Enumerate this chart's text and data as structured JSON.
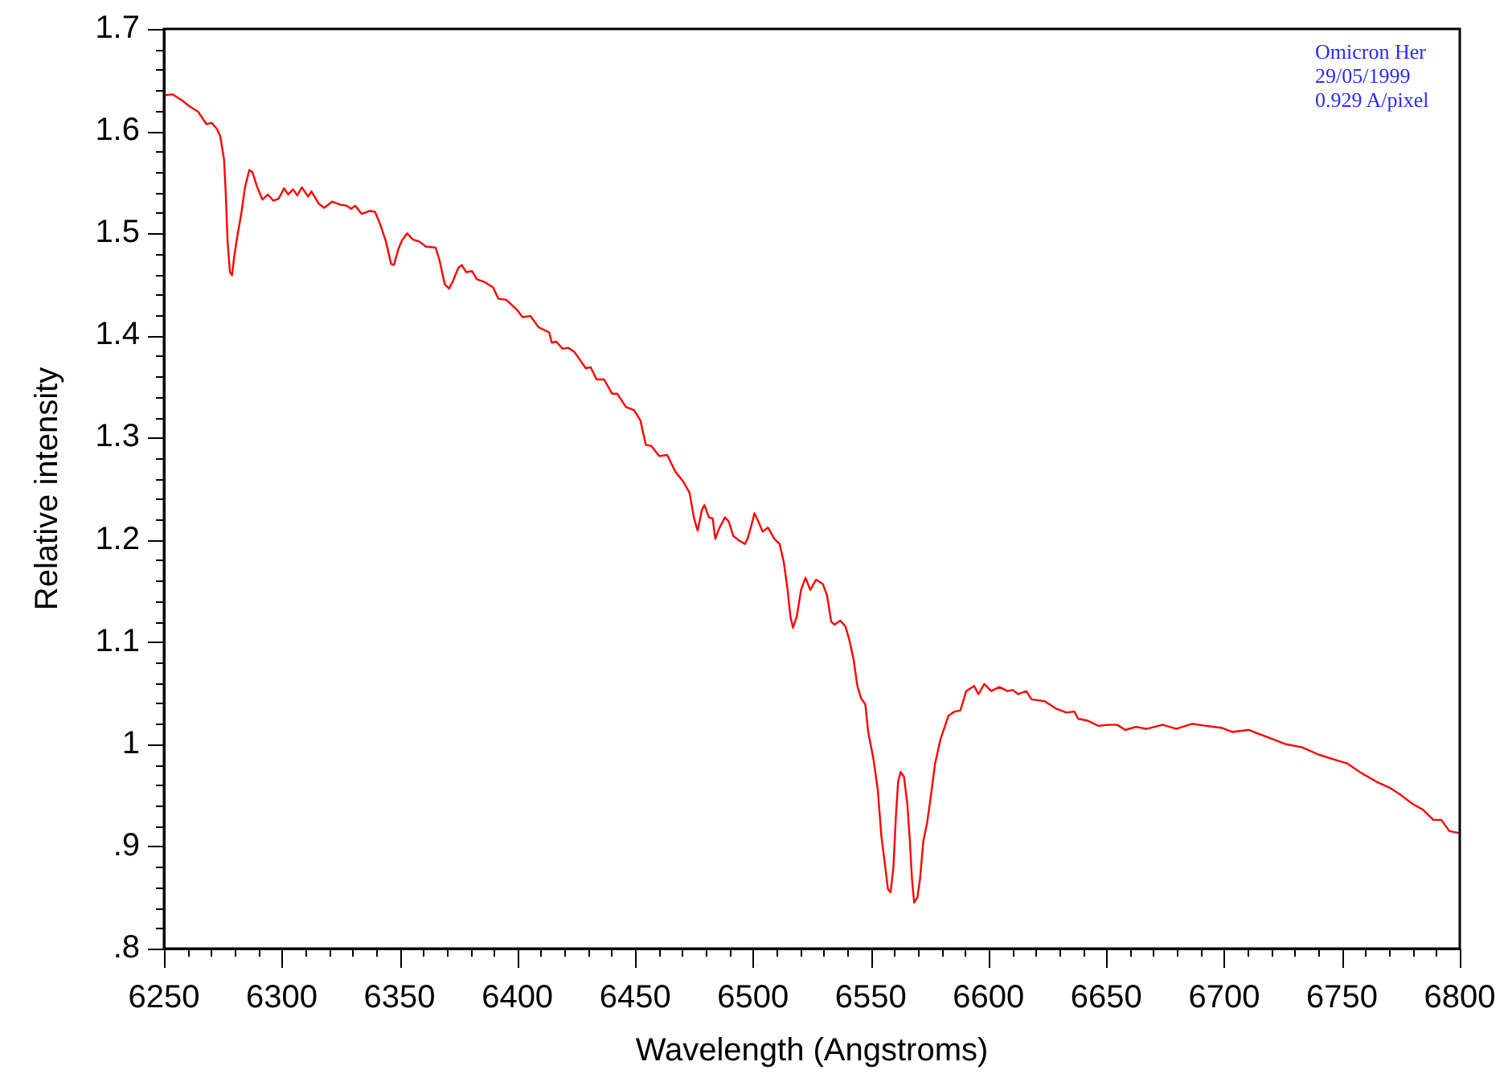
{
  "chart_data": {
    "type": "line",
    "xlabel": "Wavelength (Angstroms)",
    "ylabel": "Relative intensity",
    "annotations": [
      "Omicron Her",
      "29/05/1999",
      "0.929 A/pixel"
    ],
    "x": [
      6250,
      6253.6,
      6257.7,
      6261,
      6264.5,
      6268,
      6270.3,
      6272.5,
      6273.9,
      6275.5,
      6276.2,
      6277,
      6278,
      6278.9,
      6279.8,
      6281.2,
      6282.8,
      6284.4,
      6286.2,
      6287.5,
      6289.6,
      6291.8,
      6294.1,
      6296.4,
      6298.7,
      6301,
      6302.7,
      6304.8,
      6306.6,
      6308.5,
      6311.2,
      6312.6,
      6315.7,
      6318,
      6321.4,
      6324.9,
      6327.6,
      6329.4,
      6331.2,
      6333.9,
      6337.3,
      6339.6,
      6341.9,
      6344.2,
      6346.4,
      6347.6,
      6349.4,
      6351,
      6353.2,
      6355.6,
      6358.3,
      6361.2,
      6365.3,
      6366.9,
      6369.2,
      6371,
      6372.6,
      6374.9,
      6376.4,
      6378.3,
      6380.8,
      6382.8,
      6386.3,
      6389.7,
      6391.9,
      6395.3,
      6399.9,
      6402.2,
      6405.6,
      6409,
      6413.5,
      6414.6,
      6416.5,
      6419.2,
      6421.5,
      6424.2,
      6427.2,
      6429,
      6431.1,
      6433.6,
      6436.8,
      6440.2,
      6442.4,
      6446.1,
      6449.5,
      6452.2,
      6454.5,
      6456.8,
      6460.2,
      6463.6,
      6467,
      6470.4,
      6473.1,
      6474.9,
      6476.5,
      6478.4,
      6479.4,
      6481.3,
      6482.9,
      6484,
      6485.6,
      6488.1,
      6489.7,
      6491.6,
      6494.3,
      6496.6,
      6497.7,
      6499.3,
      6500.6,
      6502.3,
      6504.1,
      6506.4,
      6509.1,
      6511.3,
      6513.1,
      6514.7,
      6515.9,
      6517,
      6518.6,
      6520.4,
      6522.3,
      6524.3,
      6526.8,
      6529.6,
      6531.4,
      6533.2,
      6534.6,
      6537.1,
      6539.3,
      6540.9,
      6542.7,
      6544.3,
      6545.9,
      6547.7,
      6548.9,
      6551.1,
      6553,
      6554.5,
      6556.2,
      6557.3,
      6558.4,
      6559.6,
      6560.7,
      6561.6,
      6562.7,
      6564.1,
      6565.5,
      6566.6,
      6567.5,
      6568.4,
      6569.8,
      6570.9,
      6572.3,
      6573.9,
      6575.2,
      6577.3,
      6579.6,
      6581.1,
      6583,
      6585.7,
      6588,
      6589.1,
      6590.5,
      6593.9,
      6595.7,
      6598.2,
      6601.1,
      6604.6,
      6608,
      6610.3,
      6612.6,
      6616,
      6618.2,
      6623.9,
      6628.5,
      6633,
      6636.4,
      6638,
      6642.1,
      6646.6,
      6651.2,
      6654.6,
      6658,
      6662.6,
      6667.1,
      6673.9,
      6679.7,
      6686.4,
      6692.2,
      6699,
      6703.5,
      6710.3,
      6714.9,
      6719.5,
      6726.3,
      6733.1,
      6739.9,
      6746.8,
      6752.4,
      6758.1,
      6764.9,
      6770.6,
      6775.2,
      6779.7,
      6784.3,
      6788.8,
      6792.2,
      6795.6,
      6800
    ],
    "series": [
      {
        "color": "#ff0000",
        "values": [
          1.635,
          1.636,
          1.63,
          1.624,
          1.619,
          1.607,
          1.608,
          1.602,
          1.595,
          1.572,
          1.54,
          1.492,
          1.462,
          1.459,
          1.477,
          1.498,
          1.519,
          1.545,
          1.562,
          1.56,
          1.545,
          1.533,
          1.538,
          1.532,
          1.534,
          1.544,
          1.538,
          1.543,
          1.537,
          1.545,
          1.536,
          1.541,
          1.529,
          1.525,
          1.531,
          1.528,
          1.527,
          1.524,
          1.527,
          1.519,
          1.522,
          1.521,
          1.508,
          1.492,
          1.47,
          1.469,
          1.484,
          1.493,
          1.5,
          1.494,
          1.492,
          1.487,
          1.486,
          1.474,
          1.45,
          1.446,
          1.453,
          1.466,
          1.469,
          1.462,
          1.463,
          1.455,
          1.452,
          1.447,
          1.436,
          1.435,
          1.425,
          1.418,
          1.419,
          1.408,
          1.403,
          1.393,
          1.394,
          1.387,
          1.388,
          1.384,
          1.374,
          1.368,
          1.369,
          1.357,
          1.357,
          1.343,
          1.343,
          1.33,
          1.327,
          1.317,
          1.293,
          1.292,
          1.282,
          1.283,
          1.267,
          1.257,
          1.246,
          1.222,
          1.209,
          1.23,
          1.234,
          1.222,
          1.221,
          1.201,
          1.211,
          1.222,
          1.218,
          1.204,
          1.199,
          1.196,
          1.201,
          1.214,
          1.226,
          1.218,
          1.208,
          1.212,
          1.201,
          1.196,
          1.178,
          1.151,
          1.125,
          1.114,
          1.125,
          1.151,
          1.163,
          1.151,
          1.161,
          1.157,
          1.146,
          1.12,
          1.117,
          1.121,
          1.115,
          1.102,
          1.083,
          1.057,
          1.045,
          1.039,
          1.012,
          0.986,
          0.955,
          0.91,
          0.879,
          0.858,
          0.855,
          0.879,
          0.931,
          0.963,
          0.973,
          0.968,
          0.942,
          0.905,
          0.868,
          0.845,
          0.85,
          0.868,
          0.905,
          0.923,
          0.944,
          0.981,
          1.005,
          1.015,
          1.028,
          1.032,
          1.033,
          1.041,
          1.052,
          1.057,
          1.049,
          1.059,
          1.052,
          1.056,
          1.052,
          1.053,
          1.049,
          1.052,
          1.044,
          1.042,
          1.035,
          1.031,
          1.032,
          1.025,
          1.023,
          1.018,
          1.019,
          1.019,
          1.014,
          1.017,
          1.015,
          1.019,
          1.015,
          1.02,
          1.018,
          1.016,
          1.012,
          1.014,
          1.01,
          1.006,
          1,
          0.997,
          0.99,
          0.985,
          0.981,
          0.972,
          0.963,
          0.957,
          0.95,
          0.942,
          0.936,
          0.926,
          0.926,
          0.915,
          0.913
        ]
      }
    ],
    "xlim": [
      6250,
      6800
    ],
    "ylim": [
      0.8,
      1.7
    ],
    "xticks": [
      6250,
      {
        "value": 6260,
        "label": null
      },
      {
        "value": 6270,
        "label": null
      },
      {
        "value": 6280,
        "label": null
      },
      {
        "value": 6290,
        "label": null
      },
      6300,
      {
        "value": 6310,
        "label": null
      },
      {
        "value": 6320,
        "label": null
      },
      {
        "value": 6330,
        "label": null
      },
      {
        "value": 6340,
        "label": null
      },
      6350,
      {
        "value": 6360,
        "label": null
      },
      {
        "value": 6370,
        "label": null
      },
      {
        "value": 6380,
        "label": null
      },
      {
        "value": 6390,
        "label": null
      },
      6400,
      {
        "value": 6410,
        "label": null
      },
      {
        "value": 6420,
        "label": null
      },
      {
        "value": 6430,
        "label": null
      },
      {
        "value": 6440,
        "label": null
      },
      6450,
      {
        "value": 6460,
        "label": null
      },
      {
        "value": 6470,
        "label": null
      },
      {
        "value": 6480,
        "label": null
      },
      {
        "value": 6490,
        "label": null
      },
      6500,
      {
        "value": 6510,
        "label": null
      },
      {
        "value": 6520,
        "label": null
      },
      {
        "value": 6530,
        "label": null
      },
      {
        "value": 6540,
        "label": null
      },
      6550,
      {
        "value": 6560,
        "label": null
      },
      {
        "value": 6570,
        "label": null
      },
      {
        "value": 6580,
        "label": null
      },
      {
        "value": 6590,
        "label": null
      },
      6600,
      {
        "value": 6610,
        "label": null
      },
      {
        "value": 6620,
        "label": null
      },
      {
        "value": 6630,
        "label": null
      },
      {
        "value": 6640,
        "label": null
      },
      6650,
      {
        "value": 6660,
        "label": null
      },
      {
        "value": 6670,
        "label": null
      },
      {
        "value": 6680,
        "label": null
      },
      {
        "value": 6690,
        "label": null
      },
      6700,
      {
        "value": 6710,
        "label": null
      },
      {
        "value": 6720,
        "label": null
      },
      {
        "value": 6730,
        "label": null
      },
      {
        "value": 6740,
        "label": null
      },
      6750,
      {
        "value": 6760,
        "label": null
      },
      {
        "value": 6770,
        "label": null
      },
      {
        "value": 6780,
        "label": null
      },
      {
        "value": 6790,
        "label": null
      },
      6800
    ],
    "yticks": [
      {
        "value": 0.8,
        "label": ".8"
      },
      {
        "value": 0.82,
        "label": null
      },
      {
        "value": 0.84,
        "label": null
      },
      {
        "value": 0.86,
        "label": null
      },
      {
        "value": 0.88,
        "label": null
      },
      {
        "value": 0.9,
        "label": ".9"
      },
      {
        "value": 0.92,
        "label": null
      },
      {
        "value": 0.94,
        "label": null
      },
      {
        "value": 0.96,
        "label": null
      },
      {
        "value": 0.98,
        "label": null
      },
      1,
      {
        "value": 1.02,
        "label": null
      },
      {
        "value": 1.04,
        "label": null
      },
      {
        "value": 1.06,
        "label": null
      },
      {
        "value": 1.08,
        "label": null
      },
      1.1,
      {
        "value": 1.12,
        "label": null
      },
      {
        "value": 1.14,
        "label": null
      },
      {
        "value": 1.16,
        "label": null
      },
      {
        "value": 1.18,
        "label": null
      },
      1.2,
      {
        "value": 1.22,
        "label": null
      },
      {
        "value": 1.24,
        "label": null
      },
      {
        "value": 1.26,
        "label": null
      },
      {
        "value": 1.28,
        "label": null
      },
      1.3,
      {
        "value": 1.32,
        "label": null
      },
      {
        "value": 1.34,
        "label": null
      },
      {
        "value": 1.36,
        "label": null
      },
      {
        "value": 1.38,
        "label": null
      },
      1.4,
      {
        "value": 1.42,
        "label": null
      },
      {
        "value": 1.44,
        "label": null
      },
      {
        "value": 1.46,
        "label": null
      },
      {
        "value": 1.48,
        "label": null
      },
      1.5,
      {
        "value": 1.52,
        "label": null
      },
      {
        "value": 1.54,
        "label": null
      },
      {
        "value": 1.56,
        "label": null
      },
      {
        "value": 1.58,
        "label": null
      },
      1.6,
      {
        "value": 1.62,
        "label": null
      },
      {
        "value": 1.64,
        "label": null
      },
      {
        "value": 1.66,
        "label": null
      },
      {
        "value": 1.68,
        "label": null
      },
      1.7
    ],
    "grid": false,
    "legend": false,
    "marker": "none",
    "line_style": "solid"
  }
}
